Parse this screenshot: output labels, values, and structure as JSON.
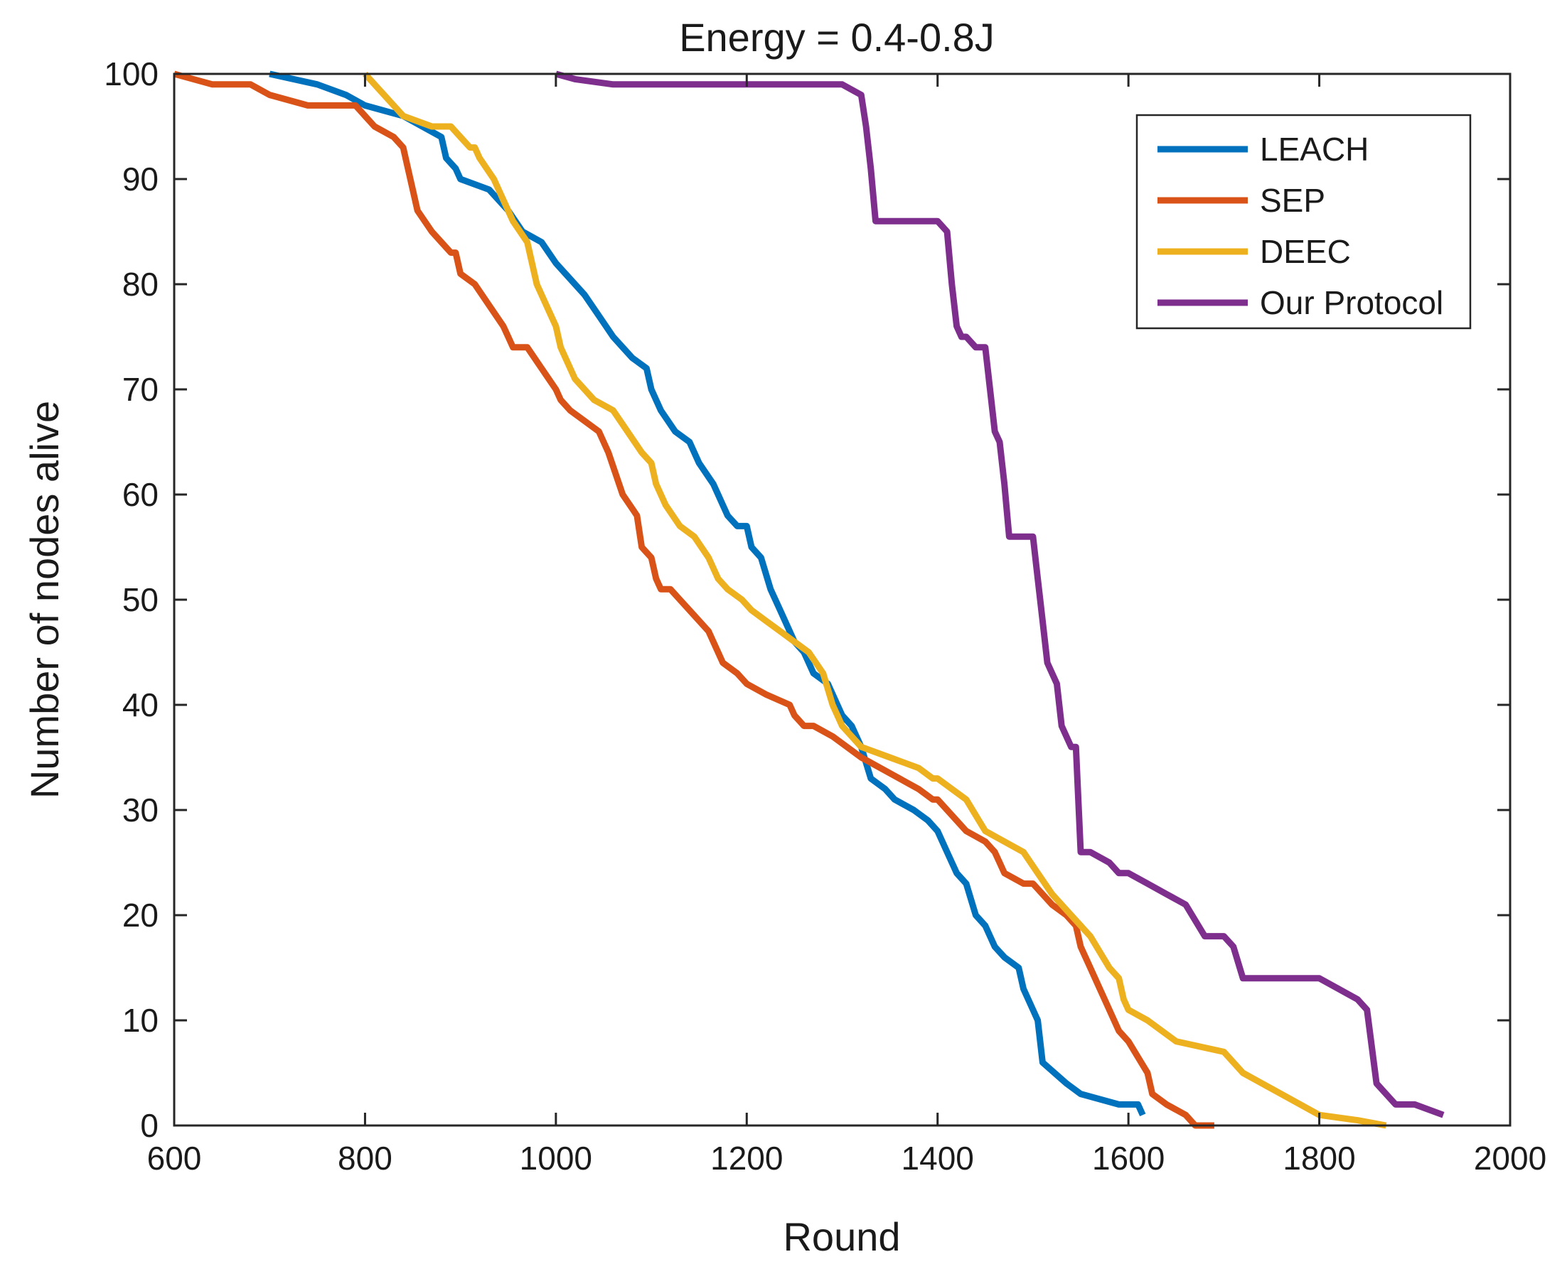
{
  "chart_data": {
    "type": "line",
    "title": "Energy = 0.4-0.8J",
    "xlabel": "Round",
    "ylabel": "Number of nodes alive",
    "xlim": [
      600,
      2000
    ],
    "ylim": [
      0,
      100
    ],
    "xticks": [
      600,
      800,
      1000,
      1200,
      1400,
      1600,
      1800,
      2000
    ],
    "yticks": [
      0,
      10,
      20,
      30,
      40,
      50,
      60,
      70,
      80,
      90,
      100
    ],
    "grid": false,
    "legend_location": "top-right",
    "series": [
      {
        "name": "LEACH",
        "color": "#0072BD",
        "x": [
          700,
          750,
          780,
          800,
          840,
          880,
          885,
          895,
          900,
          930,
          950,
          965,
          985,
          1000,
          1010,
          1030,
          1045,
          1060,
          1070,
          1080,
          1095,
          1100,
          1110,
          1125,
          1140,
          1150,
          1165,
          1175,
          1180,
          1190,
          1200,
          1205,
          1215,
          1225,
          1235,
          1250,
          1260,
          1270,
          1285,
          1300,
          1310,
          1320,
          1330,
          1345,
          1355,
          1375,
          1390,
          1400,
          1410,
          1420,
          1430,
          1440,
          1450,
          1460,
          1470,
          1485,
          1490,
          1500,
          1505,
          1510,
          1535,
          1550,
          1590,
          1610,
          1615
        ],
        "y": [
          100,
          99,
          98,
          97,
          96,
          94,
          92,
          91,
          90,
          89,
          87,
          85,
          84,
          82,
          81,
          79,
          77,
          75,
          74,
          73,
          72,
          70,
          68,
          66,
          65,
          63,
          61,
          59,
          58,
          57,
          57,
          55,
          54,
          51,
          49,
          46,
          45,
          43,
          42,
          39,
          38,
          36,
          33,
          32,
          31,
          30,
          29,
          28,
          26,
          24,
          23,
          20,
          19,
          17,
          16,
          15,
          13,
          11,
          10,
          6,
          4,
          3,
          2,
          2,
          1
        ]
      },
      {
        "name": "SEP",
        "color": "#D95319",
        "x": [
          600,
          640,
          680,
          700,
          740,
          790,
          800,
          810,
          830,
          840,
          845,
          850,
          855,
          870,
          880,
          890,
          895,
          900,
          915,
          930,
          945,
          950,
          955,
          970,
          985,
          1000,
          1005,
          1015,
          1030,
          1045,
          1055,
          1070,
          1085,
          1090,
          1100,
          1105,
          1110,
          1120,
          1130,
          1140,
          1160,
          1170,
          1175,
          1190,
          1200,
          1220,
          1245,
          1250,
          1260,
          1270,
          1290,
          1320,
          1340,
          1360,
          1380,
          1395,
          1400,
          1420,
          1430,
          1450,
          1460,
          1465,
          1470,
          1490,
          1500,
          1520,
          1535,
          1545,
          1550,
          1560,
          1570,
          1580,
          1590,
          1600,
          1620,
          1625,
          1640,
          1660,
          1670,
          1690
        ],
        "y": [
          100,
          99,
          99,
          98,
          97,
          97,
          96,
          95,
          94,
          93,
          91,
          89,
          87,
          85,
          84,
          83,
          83,
          81,
          80,
          78,
          76,
          75,
          74,
          74,
          72,
          70,
          69,
          68,
          67,
          66,
          64,
          60,
          58,
          55,
          54,
          52,
          51,
          51,
          50,
          49,
          47,
          45,
          44,
          43,
          42,
          41,
          40,
          39,
          38,
          38,
          37,
          35,
          34,
          33,
          32,
          31,
          31,
          29,
          28,
          27,
          26,
          25,
          24,
          23,
          23,
          21,
          20,
          19,
          17,
          15,
          13,
          11,
          9,
          8,
          5,
          3,
          2,
          1,
          0,
          0
        ]
      },
      {
        "name": "DEEC",
        "color": "#EDB120",
        "x": [
          800,
          830,
          840,
          870,
          890,
          900,
          910,
          915,
          920,
          935,
          945,
          955,
          970,
          980,
          985,
          990,
          1000,
          1005,
          1010,
          1020,
          1030,
          1040,
          1060,
          1075,
          1090,
          1100,
          1105,
          1115,
          1130,
          1145,
          1160,
          1170,
          1180,
          1195,
          1205,
          1220,
          1235,
          1250,
          1265,
          1280,
          1290,
          1300,
          1310,
          1320,
          1350,
          1380,
          1395,
          1400,
          1430,
          1450,
          1470,
          1490,
          1505,
          1520,
          1540,
          1560,
          1580,
          1590,
          1595,
          1600,
          1620,
          1650,
          1700,
          1720,
          1760,
          1800,
          1840,
          1870
        ],
        "y": [
          100,
          97,
          96,
          95,
          95,
          94,
          93,
          93,
          92,
          90,
          88,
          86,
          84,
          80,
          79,
          78,
          76,
          74,
          73,
          71,
          70,
          69,
          68,
          66,
          64,
          63,
          61,
          59,
          57,
          56,
          54,
          52,
          51,
          50,
          49,
          48,
          47,
          46,
          45,
          43,
          40,
          38,
          37,
          36,
          35,
          34,
          33,
          33,
          31,
          28,
          27,
          26,
          24,
          22,
          20,
          18,
          15,
          14,
          12,
          11,
          10,
          8,
          7,
          5,
          3,
          1,
          0.5,
          0
        ]
      },
      {
        "name": "Our Protocol",
        "color": "#7E2F8E",
        "x": [
          1000,
          1020,
          1060,
          1100,
          1200,
          1300,
          1320,
          1325,
          1330,
          1335,
          1340,
          1345,
          1350,
          1400,
          1410,
          1415,
          1420,
          1425,
          1430,
          1440,
          1450,
          1455,
          1460,
          1465,
          1470,
          1475,
          1480,
          1490,
          1500,
          1505,
          1510,
          1515,
          1520,
          1525,
          1530,
          1540,
          1545,
          1550,
          1555,
          1560,
          1580,
          1590,
          1600,
          1620,
          1640,
          1660,
          1680,
          1700,
          1710,
          1720,
          1760,
          1800,
          1820,
          1840,
          1850,
          1860,
          1870,
          1880,
          1890,
          1900,
          1930
        ],
        "y": [
          100,
          99.5,
          99,
          99,
          99,
          99,
          98,
          95,
          91,
          86,
          86,
          86,
          86,
          86,
          85,
          80,
          76,
          75,
          75,
          74,
          74,
          70,
          66,
          65,
          61,
          56,
          56,
          56,
          56,
          52,
          48,
          44,
          43,
          42,
          38,
          36,
          36,
          26,
          26,
          26,
          25,
          24,
          24,
          23,
          22,
          21,
          18,
          18,
          17,
          14,
          14,
          14,
          13,
          12,
          11,
          4,
          3,
          2,
          2,
          2,
          1
        ]
      }
    ]
  }
}
